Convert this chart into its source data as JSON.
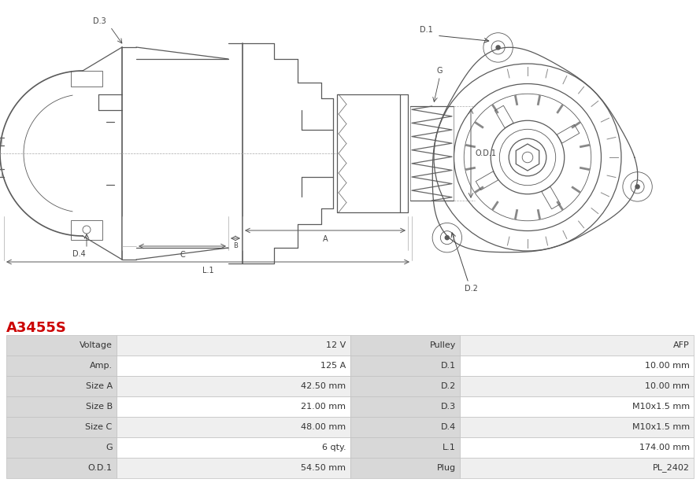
{
  "title": "A3455S",
  "title_color": "#cc0000",
  "table_rows": [
    [
      "Voltage",
      "12 V",
      "Pulley",
      "AFP"
    ],
    [
      "Amp.",
      "125 A",
      "D.1",
      "10.00 mm"
    ],
    [
      "Size A",
      "42.50 mm",
      "D.2",
      "10.00 mm"
    ],
    [
      "Size B",
      "21.00 mm",
      "D.3",
      "M10x1.5 mm"
    ],
    [
      "Size C",
      "48.00 mm",
      "D.4",
      "M10x1.5 mm"
    ],
    [
      "G",
      "6 qty.",
      "L.1",
      "174.00 mm"
    ],
    [
      "O.D.1",
      "54.50 mm",
      "Plug",
      "PL_2402"
    ]
  ],
  "lc": "#5a5a5a",
  "lc_dim": "#888888",
  "label_color": "#444444",
  "header_bg": "#d8d8d8",
  "row_bg_odd": "#efefef",
  "row_bg_even": "#ffffff",
  "border_color": "#c0c0c0",
  "bg_color": "#ffffff",
  "fig_width": 8.89,
  "fig_height": 6.23,
  "dpi": 100
}
